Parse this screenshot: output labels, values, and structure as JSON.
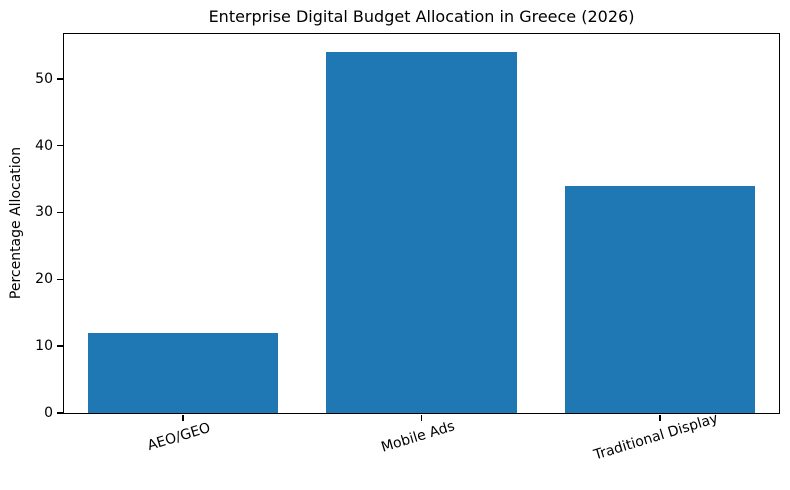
{
  "title": "Enterprise Digital Budget Allocation in Greece (2026)",
  "chart_data": {
    "type": "bar",
    "title": "Enterprise Digital Budget Allocation in Greece (2026)",
    "categories": [
      "AEO/GEO",
      "Mobile Ads",
      "Traditional Display"
    ],
    "values": [
      12,
      54,
      34
    ],
    "xlabel": "",
    "ylabel": "Percentage Allocation",
    "ylim": [
      0,
      56.7
    ],
    "yticks": [
      0,
      10,
      20,
      30,
      40,
      50
    ],
    "bar_color": "#1f77b4",
    "bar_width_fraction": 0.8,
    "xtick_rotation_deg": 17,
    "grid": false,
    "legend": null,
    "background": "#ffffff",
    "spine_color": "#000000",
    "text_color": "#000000"
  }
}
